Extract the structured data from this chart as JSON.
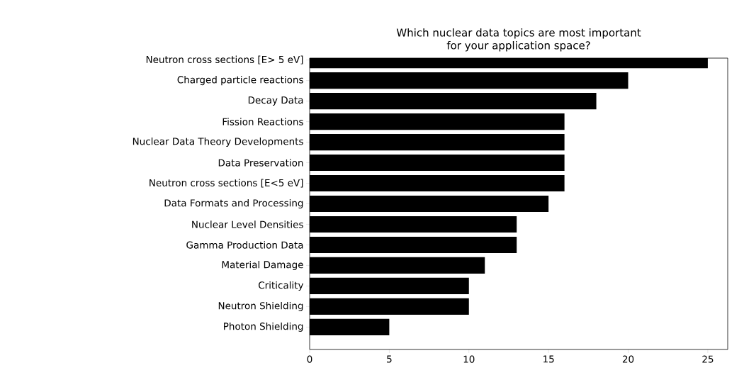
{
  "chart_data": {
    "type": "bar",
    "orientation": "horizontal",
    "title": "Which nuclear data topics are most important\nfor your application space?",
    "categories": [
      "Neutron cross sections [E> 5 eV]",
      "Charged particle reactions",
      "Decay Data",
      "Fission Reactions",
      "Nuclear Data Theory Developments",
      "Data Preservation",
      "Neutron cross sections [E<5 eV]",
      "Data Formats and Processing",
      "Nuclear Level Densities",
      "Gamma Production Data",
      "Material Damage",
      "Criticality",
      "Neutron Shielding",
      "Photon Shielding"
    ],
    "values": [
      25,
      20,
      18,
      16,
      16,
      16,
      16,
      15,
      13,
      13,
      11,
      10,
      10,
      5
    ],
    "color": "#000000",
    "xlim": [
      0,
      26.25
    ],
    "xticks": [
      0,
      5,
      10,
      15,
      20,
      25
    ]
  }
}
